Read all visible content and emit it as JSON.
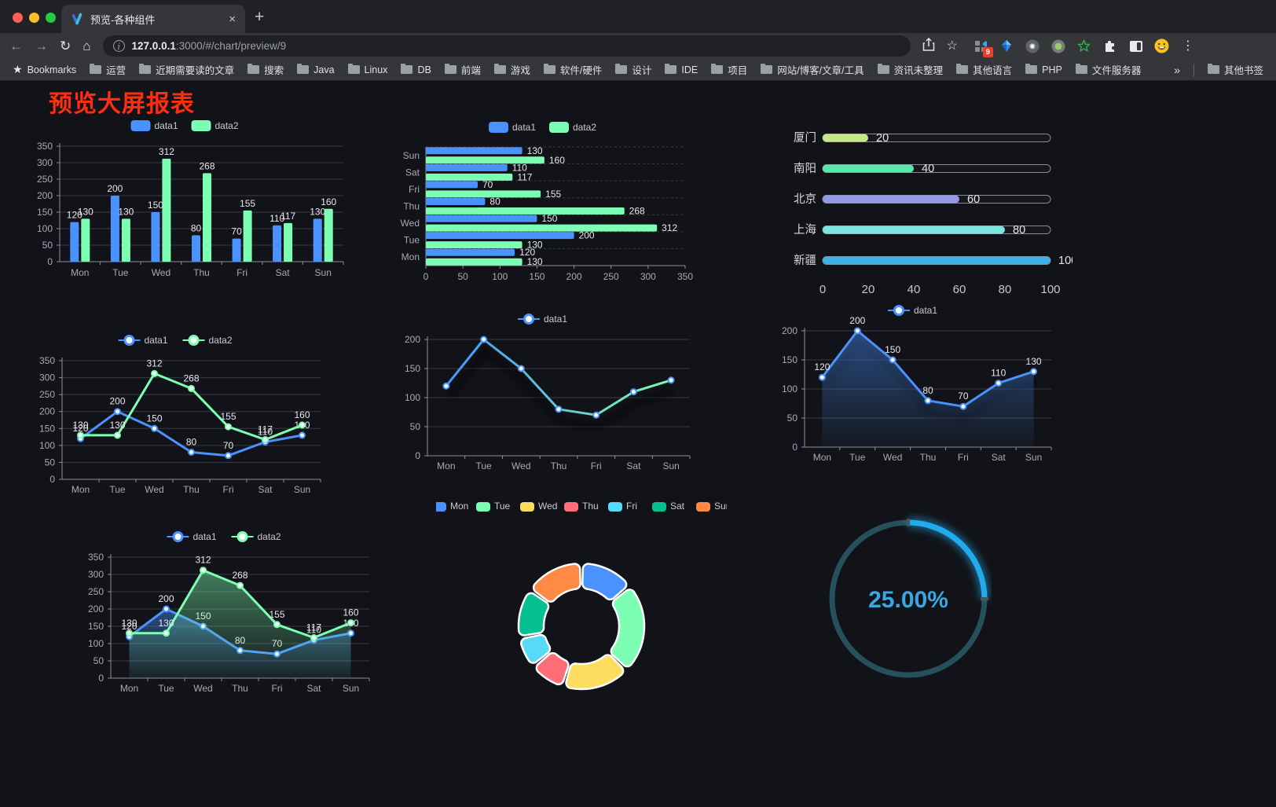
{
  "browser": {
    "tab_title": "预览-各种组件",
    "url_host": "127.0.0.1",
    "url_rest": ":3000/#/chart/preview/9",
    "bookmarks_label": "Bookmarks",
    "bookmarks": [
      "运营",
      "近期需要读的文章",
      "搜索",
      "Java",
      "Linux",
      "DB",
      "前端",
      "游戏",
      "软件/硬件",
      "设计",
      "IDE",
      "项目",
      "网站/博客/文章/工具",
      "资讯未整理",
      "其他语言",
      "PHP",
      "文件服务器"
    ],
    "bookmarks_overflow": "»",
    "other_bookmarks": "其他书签",
    "extension_badge": "9",
    "new_tab_label": "+",
    "close_label": "×"
  },
  "page": {
    "title": "预览大屏报表",
    "title_color": "#ff2e10",
    "background": "#121318"
  },
  "chart_data": [
    {
      "name": "grouped-bar",
      "type": "bar",
      "categories": [
        "Mon",
        "Tue",
        "Wed",
        "Thu",
        "Fri",
        "Sat",
        "Sun"
      ],
      "series": [
        {
          "name": "data1",
          "color": "#4992ff",
          "values": [
            120,
            200,
            150,
            80,
            70,
            110,
            130
          ]
        },
        {
          "name": "data2",
          "color": "#7cffb2",
          "values": [
            130,
            130,
            312,
            268,
            155,
            117,
            160
          ]
        }
      ],
      "ylim": [
        0,
        350
      ],
      "yticks": [
        0,
        50,
        100,
        150,
        200,
        250,
        300,
        350
      ],
      "show_labels": true,
      "legend_position": "top"
    },
    {
      "name": "horizontal-bar",
      "type": "bar-horizontal",
      "categories": [
        "Mon",
        "Tue",
        "Wed",
        "Thu",
        "Fri",
        "Sat",
        "Sun"
      ],
      "series": [
        {
          "name": "data1",
          "color": "#4992ff",
          "values": [
            120,
            200,
            150,
            80,
            70,
            110,
            130
          ]
        },
        {
          "name": "data2",
          "color": "#7cffb2",
          "values": [
            130,
            130,
            312,
            268,
            155,
            117,
            160
          ]
        }
      ],
      "xlim": [
        0,
        350
      ],
      "xticks": [
        0,
        50,
        100,
        150,
        200,
        250,
        300,
        350
      ],
      "show_labels": true,
      "legend_position": "top"
    },
    {
      "name": "progress-list",
      "type": "progress",
      "max": 100,
      "xticks": [
        0,
        20,
        40,
        60,
        80,
        100
      ],
      "items": [
        {
          "label": "厦门",
          "value": 20,
          "color": "#c4e884"
        },
        {
          "label": "南阳",
          "value": 40,
          "color": "#59e6ad"
        },
        {
          "label": "北京",
          "value": 60,
          "color": "#9297e6"
        },
        {
          "label": "上海",
          "value": 80,
          "color": "#7ee4de"
        },
        {
          "label": "新疆",
          "value": 100,
          "color": "#3eb2e4"
        }
      ]
    },
    {
      "name": "line-two-series",
      "type": "line",
      "categories": [
        "Mon",
        "Tue",
        "Wed",
        "Thu",
        "Fri",
        "Sat",
        "Sun"
      ],
      "series": [
        {
          "name": "data1",
          "color": "#4992ff",
          "values": [
            120,
            200,
            150,
            80,
            70,
            110,
            130
          ]
        },
        {
          "name": "data2",
          "color": "#7cffb2",
          "values": [
            130,
            130,
            312,
            268,
            155,
            117,
            160
          ]
        }
      ],
      "ylim": [
        0,
        350
      ],
      "yticks": [
        0,
        50,
        100,
        150,
        200,
        250,
        300,
        350
      ],
      "show_labels": true
    },
    {
      "name": "line-gradient",
      "type": "line",
      "categories": [
        "Mon",
        "Tue",
        "Wed",
        "Thu",
        "Fri",
        "Sat",
        "Sun"
      ],
      "series": [
        {
          "name": "data1",
          "color": "#4992ff",
          "values": [
            120,
            200,
            150,
            80,
            70,
            110,
            130
          ]
        }
      ],
      "stroke_gradient": [
        "#4992ff",
        "#7cffb2"
      ],
      "ylim": [
        0,
        200
      ],
      "yticks": [
        0,
        50,
        100,
        150,
        200
      ],
      "show_labels": false
    },
    {
      "name": "area-single",
      "type": "area",
      "categories": [
        "Mon",
        "Tue",
        "Wed",
        "Thu",
        "Fri",
        "Sat",
        "Sun"
      ],
      "series": [
        {
          "name": "data1",
          "color": "#4992ff",
          "values": [
            120,
            200,
            150,
            80,
            70,
            110,
            130
          ]
        }
      ],
      "ylim": [
        0,
        200
      ],
      "yticks": [
        0,
        50,
        100,
        150,
        200
      ],
      "show_labels": true
    },
    {
      "name": "area-two-series",
      "type": "area",
      "categories": [
        "Mon",
        "Tue",
        "Wed",
        "Thu",
        "Fri",
        "Sat",
        "Sun"
      ],
      "series": [
        {
          "name": "data1",
          "color": "#4992ff",
          "values": [
            120,
            200,
            150,
            80,
            70,
            110,
            130
          ]
        },
        {
          "name": "data2",
          "color": "#7cffb2",
          "values": [
            130,
            130,
            312,
            268,
            155,
            117,
            160
          ]
        }
      ],
      "ylim": [
        0,
        350
      ],
      "yticks": [
        0,
        50,
        100,
        150,
        200,
        250,
        300,
        350
      ],
      "show_labels": true
    },
    {
      "name": "donut",
      "type": "donut",
      "slices": [
        {
          "label": "Mon",
          "value": 120,
          "color": "#4992ff"
        },
        {
          "label": "Tue",
          "value": 200,
          "color": "#7cffb2"
        },
        {
          "label": "Wed",
          "value": 150,
          "color": "#fddd60"
        },
        {
          "label": "Thu",
          "value": 80,
          "color": "#ff6e76"
        },
        {
          "label": "Fri",
          "value": 70,
          "color": "#58d9f9"
        },
        {
          "label": "Sat",
          "value": 110,
          "color": "#05c091"
        },
        {
          "label": "Sun",
          "value": 130,
          "color": "#ff8a45"
        }
      ],
      "legend_position": "top",
      "border_color": "#ffffff"
    },
    {
      "name": "gauge",
      "type": "gauge",
      "percent": 25,
      "text": "25.00%",
      "color": "#22aaee",
      "track_color": "#25505c",
      "text_color": "#3ca6e3"
    }
  ]
}
